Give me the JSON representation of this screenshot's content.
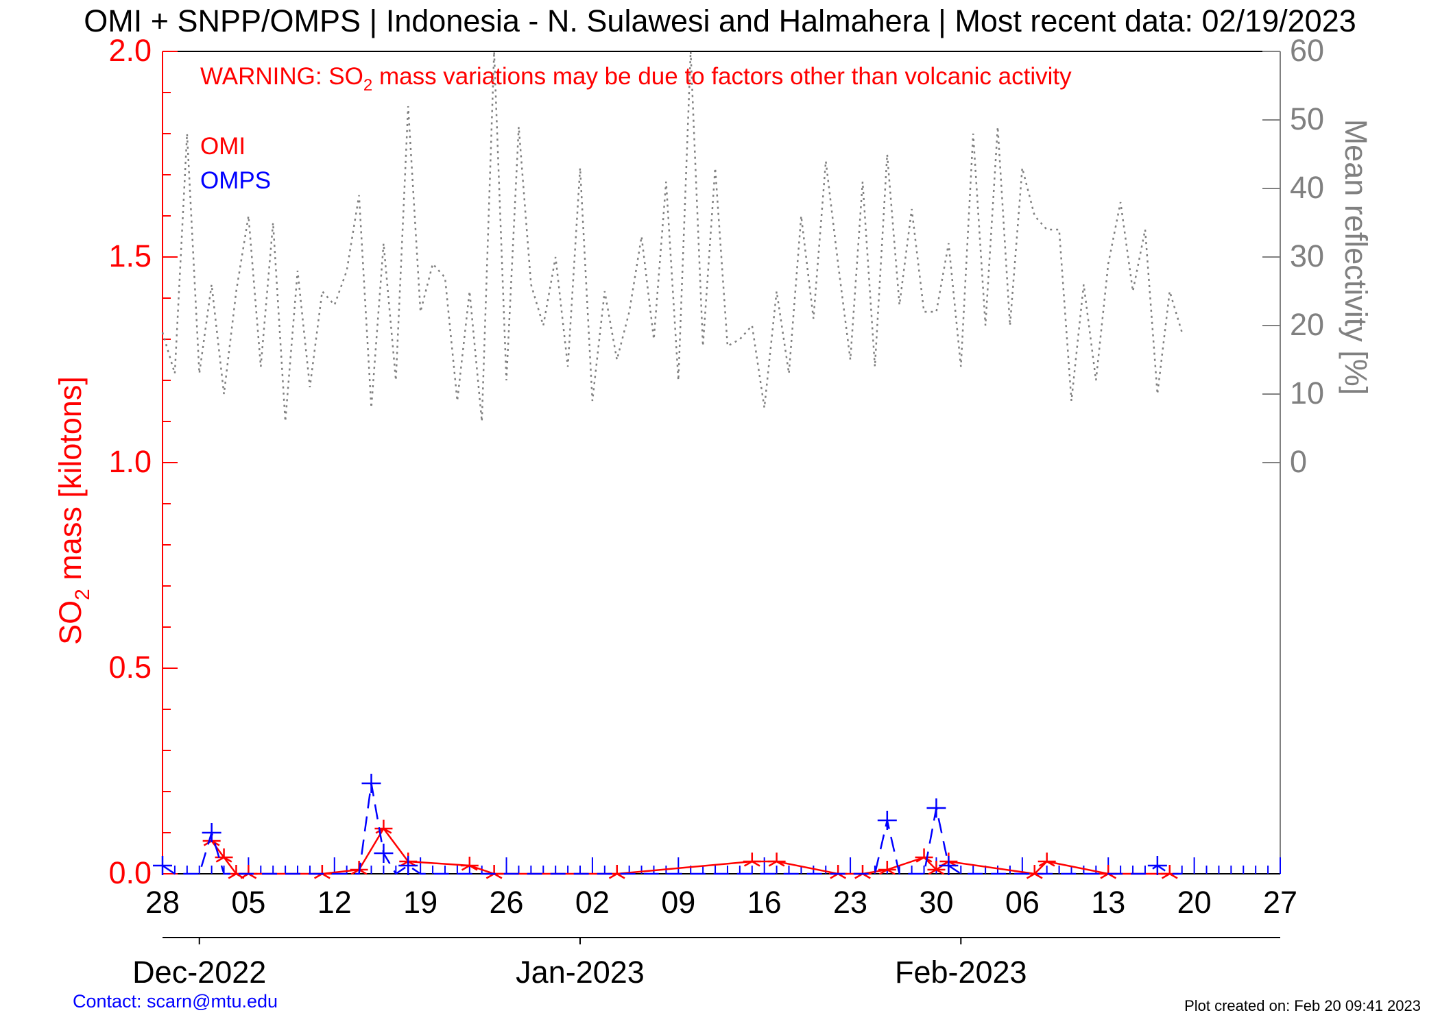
{
  "chart_data": {
    "type": "line",
    "title": "OMI + SNPP/OMPS | Indonesia - N. Sulawesi and Halmahera | Most recent data: 02/19/2023",
    "warning": {
      "prefix": "WARNING: SO",
      "subscript": "2",
      "suffix": " mass variations may be due to factors other than volcanic activity"
    },
    "ylabel_left": {
      "prefix": "SO",
      "subscript": "2",
      "suffix": " mass [kilotons]"
    },
    "ylabel_right": "Mean reflectivity [%]",
    "ylim_left": [
      0,
      2.0
    ],
    "ylim_right": [
      -60,
      60
    ],
    "left_ticks": [
      "0.0",
      "0.5",
      "1.0",
      "1.5",
      "2.0"
    ],
    "right_ticks": [
      "0",
      "10",
      "20",
      "30",
      "40",
      "50",
      "60"
    ],
    "x_start": "2022-11-28",
    "x_end": "2023-02-27",
    "day_ticks": [
      "28",
      "05",
      "12",
      "19",
      "26",
      "02",
      "09",
      "16",
      "23",
      "30",
      "06",
      "13",
      "20",
      "27"
    ],
    "month_labels": [
      {
        "date": "2022-12-01",
        "label": "Dec-2022"
      },
      {
        "date": "2023-01-01",
        "label": "Jan-2023"
      },
      {
        "date": "2023-02-01",
        "label": "Feb-2023"
      }
    ],
    "legend": {
      "position": "top-left",
      "entries": [
        {
          "name": "OMI",
          "color": "#ff0000"
        },
        {
          "name": "OMPS",
          "color": "#0000ff"
        }
      ]
    },
    "series": [
      {
        "name": "OMI",
        "color": "#ff0000",
        "axis": "left",
        "style": "solid",
        "marker": "star",
        "points": [
          [
            "2022-12-02",
            0.08
          ],
          [
            "2022-12-03",
            0.04
          ],
          [
            "2022-12-04",
            0.0
          ],
          [
            "2022-12-05",
            0.0
          ],
          [
            "2022-12-11",
            0.0
          ],
          [
            "2022-12-14",
            0.01
          ],
          [
            "2022-12-16",
            0.11
          ],
          [
            "2022-12-18",
            0.03
          ],
          [
            "2022-12-23",
            0.02
          ],
          [
            "2022-12-25",
            0.0
          ],
          [
            "2023-01-04",
            0.0
          ],
          [
            "2023-01-15",
            0.03
          ],
          [
            "2023-01-17",
            0.03
          ],
          [
            "2023-01-22",
            0.0
          ],
          [
            "2023-01-24",
            0.0
          ],
          [
            "2023-01-26",
            0.01
          ],
          [
            "2023-01-29",
            0.04
          ],
          [
            "2023-01-30",
            0.01
          ],
          [
            "2023-01-31",
            0.03
          ],
          [
            "2023-02-07",
            0.0
          ],
          [
            "2023-02-08",
            0.03
          ],
          [
            "2023-02-13",
            0.0
          ],
          [
            "2023-02-18",
            0.0
          ]
        ]
      },
      {
        "name": "OMPS",
        "color": "#0000ff",
        "axis": "left",
        "style": "dashed",
        "marker": "plus",
        "points": [
          [
            "2022-11-28",
            0.02
          ],
          [
            "2022-11-29",
            0.0
          ],
          [
            "2022-11-30",
            0.0
          ],
          [
            "2022-12-01",
            0.0
          ],
          [
            "2022-12-02",
            0.1
          ],
          [
            "2022-12-03",
            0.0
          ],
          [
            "2022-12-04",
            0.0
          ],
          [
            "2022-12-05",
            0.0
          ],
          [
            "2022-12-06",
            0.0
          ],
          [
            "2022-12-07",
            0.0
          ],
          [
            "2022-12-08",
            0.0
          ],
          [
            "2022-12-09",
            0.0
          ],
          [
            "2022-12-10",
            0.0
          ],
          [
            "2022-12-11",
            0.0
          ],
          [
            "2022-12-12",
            0.0
          ],
          [
            "2022-12-13",
            0.0
          ],
          [
            "2022-12-14",
            0.0
          ],
          [
            "2022-12-15",
            0.22
          ],
          [
            "2022-12-16",
            0.05
          ],
          [
            "2022-12-17",
            0.0
          ],
          [
            "2022-12-18",
            0.02
          ],
          [
            "2022-12-19",
            0.0
          ],
          [
            "2022-12-20",
            0.0
          ],
          [
            "2022-12-21",
            0.0
          ],
          [
            "2022-12-22",
            0.0
          ],
          [
            "2022-12-23",
            0.0
          ],
          [
            "2022-12-24",
            0.0
          ],
          [
            "2022-12-25",
            0.0
          ],
          [
            "2022-12-26",
            0.0
          ],
          [
            "2022-12-27",
            0.0
          ],
          [
            "2022-12-28",
            0.0
          ],
          [
            "2022-12-29",
            0.0
          ],
          [
            "2022-12-30",
            0.0
          ],
          [
            "2022-12-31",
            0.0
          ],
          [
            "2023-01-01",
            0.0
          ],
          [
            "2023-01-02",
            0.0
          ],
          [
            "2023-01-03",
            0.0
          ],
          [
            "2023-01-04",
            0.0
          ],
          [
            "2023-01-05",
            0.0
          ],
          [
            "2023-01-06",
            0.0
          ],
          [
            "2023-01-07",
            0.0
          ],
          [
            "2023-01-08",
            0.0
          ],
          [
            "2023-01-09",
            0.0
          ],
          [
            "2023-01-10",
            0.0
          ],
          [
            "2023-01-11",
            0.0
          ],
          [
            "2023-01-12",
            0.0
          ],
          [
            "2023-01-13",
            0.0
          ],
          [
            "2023-01-14",
            0.0
          ],
          [
            "2023-01-15",
            0.0
          ],
          [
            "2023-01-16",
            0.0
          ],
          [
            "2023-01-17",
            0.0
          ],
          [
            "2023-01-18",
            0.0
          ],
          [
            "2023-01-19",
            0.0
          ],
          [
            "2023-01-20",
            0.0
          ],
          [
            "2023-01-21",
            0.0
          ],
          [
            "2023-01-22",
            0.0
          ],
          [
            "2023-01-23",
            0.0
          ],
          [
            "2023-01-24",
            0.0
          ],
          [
            "2023-01-25",
            0.0
          ],
          [
            "2023-01-26",
            0.13
          ],
          [
            "2023-01-27",
            0.0
          ],
          [
            "2023-01-28",
            0.0
          ],
          [
            "2023-01-29",
            0.0
          ],
          [
            "2023-01-30",
            0.16
          ],
          [
            "2023-01-31",
            0.02
          ],
          [
            "2023-02-01",
            0.0
          ],
          [
            "2023-02-02",
            0.0
          ],
          [
            "2023-02-03",
            0.0
          ],
          [
            "2023-02-04",
            0.0
          ],
          [
            "2023-02-05",
            0.0
          ],
          [
            "2023-02-06",
            0.0
          ],
          [
            "2023-02-07",
            0.0
          ],
          [
            "2023-02-08",
            0.0
          ],
          [
            "2023-02-09",
            0.0
          ],
          [
            "2023-02-10",
            0.0
          ],
          [
            "2023-02-11",
            0.0
          ],
          [
            "2023-02-12",
            0.0
          ],
          [
            "2023-02-13",
            0.0
          ],
          [
            "2023-02-14",
            0.0
          ],
          [
            "2023-02-15",
            0.0
          ],
          [
            "2023-02-16",
            0.0
          ],
          [
            "2023-02-17",
            0.02
          ],
          [
            "2023-02-18",
            0.0
          ],
          [
            "2023-02-19",
            0.0
          ]
        ]
      },
      {
        "name": "Mean reflectivity",
        "color": "#808080",
        "axis": "right",
        "style": "dotted",
        "marker": "none",
        "points": [
          [
            "2022-11-28",
            19
          ],
          [
            "2022-11-29",
            13
          ],
          [
            "2022-11-30",
            48
          ],
          [
            "2022-12-01",
            13
          ],
          [
            "2022-12-02",
            26
          ],
          [
            "2022-12-03",
            10
          ],
          [
            "2022-12-04",
            25
          ],
          [
            "2022-12-05",
            36
          ],
          [
            "2022-12-06",
            14
          ],
          [
            "2022-12-07",
            35
          ],
          [
            "2022-12-08",
            6
          ],
          [
            "2022-12-09",
            28
          ],
          [
            "2022-12-10",
            11
          ],
          [
            "2022-12-11",
            25
          ],
          [
            "2022-12-12",
            23
          ],
          [
            "2022-12-13",
            28
          ],
          [
            "2022-12-14",
            39
          ],
          [
            "2022-12-15",
            8
          ],
          [
            "2022-12-16",
            32
          ],
          [
            "2022-12-17",
            12
          ],
          [
            "2022-12-18",
            52
          ],
          [
            "2022-12-19",
            22
          ],
          [
            "2022-12-20",
            29
          ],
          [
            "2022-12-21",
            27
          ],
          [
            "2022-12-22",
            9
          ],
          [
            "2022-12-23",
            25
          ],
          [
            "2022-12-24",
            6
          ],
          [
            "2022-12-25",
            60
          ],
          [
            "2022-12-26",
            12
          ],
          [
            "2022-12-27",
            49
          ],
          [
            "2022-12-28",
            26
          ],
          [
            "2022-12-29",
            20
          ],
          [
            "2022-12-30",
            30
          ],
          [
            "2022-12-31",
            14
          ],
          [
            "2023-01-01",
            43
          ],
          [
            "2023-01-02",
            9
          ],
          [
            "2023-01-03",
            25
          ],
          [
            "2023-01-04",
            15
          ],
          [
            "2023-01-05",
            22
          ],
          [
            "2023-01-06",
            33
          ],
          [
            "2023-01-07",
            18
          ],
          [
            "2023-01-08",
            41
          ],
          [
            "2023-01-09",
            12
          ],
          [
            "2023-01-10",
            60
          ],
          [
            "2023-01-11",
            17
          ],
          [
            "2023-01-12",
            43
          ],
          [
            "2023-01-13",
            17
          ],
          [
            "2023-01-14",
            18
          ],
          [
            "2023-01-15",
            20
          ],
          [
            "2023-01-16",
            8
          ],
          [
            "2023-01-17",
            25
          ],
          [
            "2023-01-18",
            13
          ],
          [
            "2023-01-19",
            36
          ],
          [
            "2023-01-20",
            21
          ],
          [
            "2023-01-21",
            44
          ],
          [
            "2023-01-22",
            29
          ],
          [
            "2023-01-23",
            15
          ],
          [
            "2023-01-24",
            41
          ],
          [
            "2023-01-25",
            14
          ],
          [
            "2023-01-26",
            45
          ],
          [
            "2023-01-27",
            23
          ],
          [
            "2023-01-28",
            37
          ],
          [
            "2023-01-29",
            22
          ],
          [
            "2023-01-30",
            22
          ],
          [
            "2023-01-31",
            32
          ],
          [
            "2023-02-01",
            14
          ],
          [
            "2023-02-02",
            48
          ],
          [
            "2023-02-03",
            20
          ],
          [
            "2023-02-04",
            49
          ],
          [
            "2023-02-05",
            20
          ],
          [
            "2023-02-06",
            43
          ],
          [
            "2023-02-07",
            36
          ],
          [
            "2023-02-08",
            34
          ],
          [
            "2023-02-09",
            34
          ],
          [
            "2023-02-10",
            9
          ],
          [
            "2023-02-11",
            26
          ],
          [
            "2023-02-12",
            12
          ],
          [
            "2023-02-13",
            29
          ],
          [
            "2023-02-14",
            38
          ],
          [
            "2023-02-15",
            25
          ],
          [
            "2023-02-16",
            34
          ],
          [
            "2023-02-17",
            10
          ],
          [
            "2023-02-18",
            25
          ],
          [
            "2023-02-19",
            19
          ]
        ]
      }
    ]
  },
  "footer": {
    "contact": "Contact: scarn@mtu.edu",
    "created": "Plot created on: Feb 20 09:41 2023"
  }
}
